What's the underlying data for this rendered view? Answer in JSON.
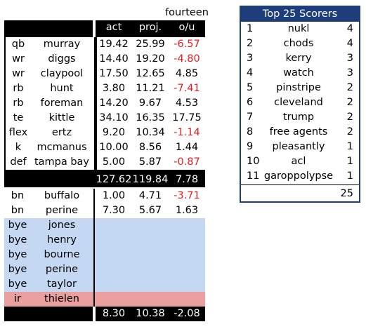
{
  "roster": {
    "week_label": "fourteen",
    "columns": {
      "act": "act",
      "proj": "proj.",
      "ou": "o/u"
    },
    "starters": [
      {
        "pos": "qb",
        "name": "murray",
        "act": "19.42",
        "proj": "25.99",
        "ou": "-6.57",
        "neg": true
      },
      {
        "pos": "wr",
        "name": "diggs",
        "act": "14.40",
        "proj": "19.20",
        "ou": "-4.80",
        "neg": true
      },
      {
        "pos": "wr",
        "name": "claypool",
        "act": "17.50",
        "proj": "12.65",
        "ou": "4.85",
        "neg": false
      },
      {
        "pos": "rb",
        "name": "hunt",
        "act": "3.80",
        "proj": "11.21",
        "ou": "-7.41",
        "neg": true
      },
      {
        "pos": "rb",
        "name": "foreman",
        "act": "14.20",
        "proj": "9.67",
        "ou": "4.53",
        "neg": false
      },
      {
        "pos": "te",
        "name": "kittle",
        "act": "34.10",
        "proj": "16.35",
        "ou": "17.75",
        "neg": false
      },
      {
        "pos": "flex",
        "name": "ertz",
        "act": "9.20",
        "proj": "10.34",
        "ou": "-1.14",
        "neg": true
      },
      {
        "pos": "k",
        "name": "mcmanus",
        "act": "10.00",
        "proj": "8.56",
        "ou": "1.44",
        "neg": false
      },
      {
        "pos": "def",
        "name": "tampa bay",
        "act": "5.00",
        "proj": "5.87",
        "ou": "-0.87",
        "neg": true
      }
    ],
    "starter_totals": {
      "act": "127.62",
      "proj": "119.84",
      "ou": "7.78"
    },
    "bench": [
      {
        "pos": "bn",
        "name": "buffalo",
        "act": "1.00",
        "proj": "4.71",
        "ou": "-3.71",
        "neg": true
      },
      {
        "pos": "bn",
        "name": "perine",
        "act": "7.30",
        "proj": "5.67",
        "ou": "1.63",
        "neg": false
      }
    ],
    "bye": [
      {
        "pos": "bye",
        "name": "jones"
      },
      {
        "pos": "bye",
        "name": "henry"
      },
      {
        "pos": "bye",
        "name": "bourne"
      },
      {
        "pos": "bye",
        "name": "perine"
      },
      {
        "pos": "bye",
        "name": "taylor"
      }
    ],
    "ir": {
      "pos": "ir",
      "name": "thielen"
    },
    "bench_totals": {
      "act": "8.30",
      "proj": "10.38",
      "ou": "-2.08"
    },
    "colors": {
      "negative": "#e02020",
      "bye_bg": "#c5d8f3",
      "ir_bg": "#ea9f9f"
    }
  },
  "scorers": {
    "title": "Top 25 Scorers",
    "rows": [
      {
        "rank": "1",
        "name": "nukl",
        "count": "4"
      },
      {
        "rank": "2",
        "name": "chods",
        "count": "4"
      },
      {
        "rank": "3",
        "name": "kerry",
        "count": "3"
      },
      {
        "rank": "4",
        "name": "watch",
        "count": "3"
      },
      {
        "rank": "5",
        "name": "pinstripe",
        "count": "2"
      },
      {
        "rank": "6",
        "name": "cleveland",
        "count": "2"
      },
      {
        "rank": "7",
        "name": "trump",
        "count": "2"
      },
      {
        "rank": "8",
        "name": "free agents",
        "count": "2"
      },
      {
        "rank": "9",
        "name": "pleasantly",
        "count": "1"
      },
      {
        "rank": "10",
        "name": "acl",
        "count": "1"
      },
      {
        "rank": "11",
        "name": "garoppolypse",
        "count": "1"
      }
    ],
    "total": "25",
    "colors": {
      "header_bg": "#1e3d7b"
    }
  }
}
